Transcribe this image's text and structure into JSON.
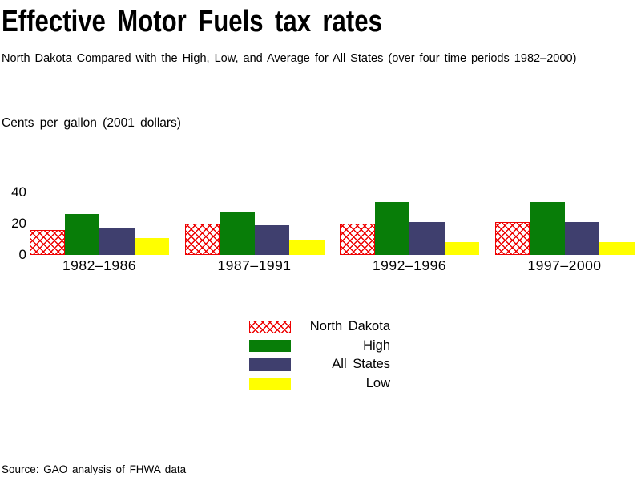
{
  "title": "Effective Motor Fuels tax rates",
  "subtitle": "North Dakota Compared with the High, Low, and Average for All States (over four time periods 1982–2000)",
  "unit_label": "Cents per gallon (2001 dollars)",
  "source": "Source: GAO analysis of FHWA data",
  "colors": {
    "north_dakota": "#ee0000",
    "high": "#087d08",
    "all_states": "#3f3f6e",
    "low": "#ffff00",
    "text": "#000000",
    "background": "#ffffff"
  },
  "legend": {
    "items": [
      {
        "label": "North Dakota",
        "swatch": "crosshatch-red"
      },
      {
        "label": "High",
        "swatch": "solid-green"
      },
      {
        "label": "All States",
        "swatch": "solid-navy"
      },
      {
        "label": "Low",
        "swatch": "solid-yellow"
      }
    ]
  },
  "chart_data": {
    "type": "bar",
    "categories": [
      "1982–1986",
      "1987–1991",
      "1992–1996",
      "1997–2000"
    ],
    "series": [
      {
        "name": "North Dakota",
        "key": "nd",
        "values": [
          16,
          20,
          20,
          21
        ]
      },
      {
        "name": "High",
        "key": "high",
        "values": [
          26,
          27,
          34,
          34
        ]
      },
      {
        "name": "All States",
        "key": "all",
        "values": [
          17,
          19,
          21,
          21
        ]
      },
      {
        "name": "Low",
        "key": "low",
        "values": [
          11,
          10,
          8,
          8
        ]
      }
    ],
    "title": "Effective Motor Fuels tax rates",
    "xlabel": "",
    "ylabel": "Cents per gallon (2001 dollars)",
    "yticks": [
      0,
      20,
      40
    ],
    "ylim": [
      0,
      45
    ],
    "grid": false,
    "axis_lines": false,
    "legend_position": "bottom-center"
  }
}
